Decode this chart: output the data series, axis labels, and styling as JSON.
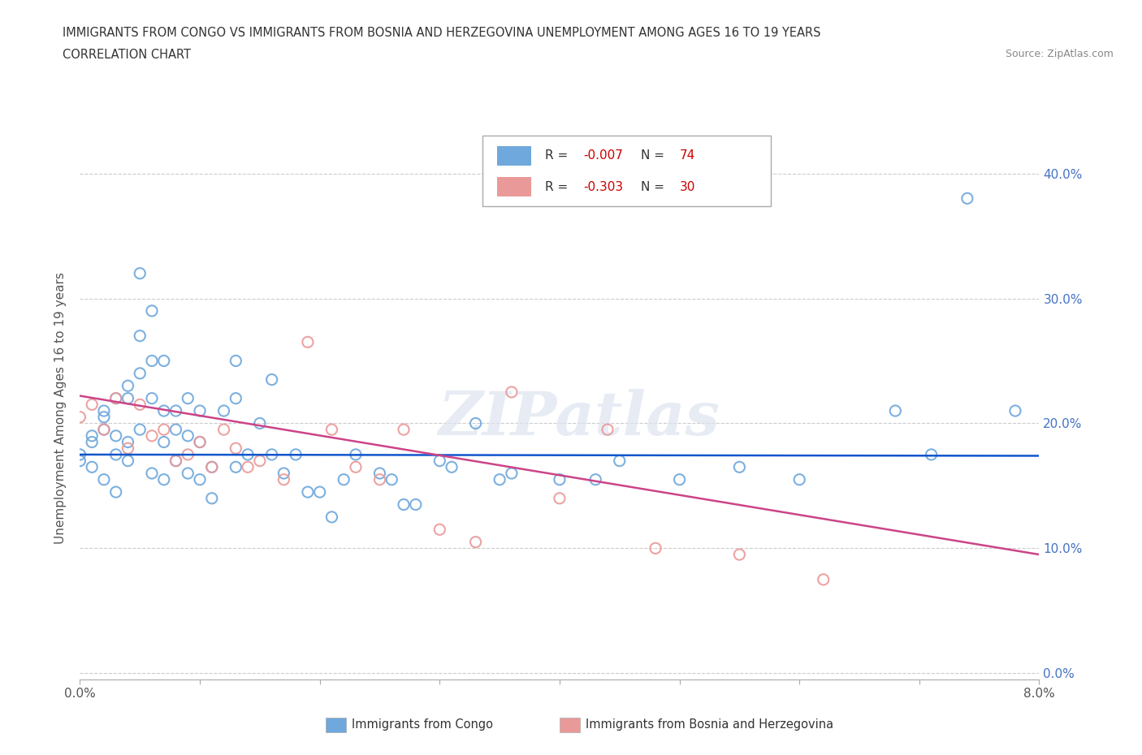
{
  "title_line1": "IMMIGRANTS FROM CONGO VS IMMIGRANTS FROM BOSNIA AND HERZEGOVINA UNEMPLOYMENT AMONG AGES 16 TO 19 YEARS",
  "title_line2": "CORRELATION CHART",
  "source": "Source: ZipAtlas.com",
  "ylabel": "Unemployment Among Ages 16 to 19 years",
  "xlim": [
    0.0,
    0.08
  ],
  "ylim": [
    -0.005,
    0.43
  ],
  "xticks": [
    0.0,
    0.01,
    0.02,
    0.03,
    0.04,
    0.05,
    0.06,
    0.07,
    0.08
  ],
  "xtick_labels": [
    "0.0%",
    "",
    "",
    "",
    "",
    "",
    "",
    "",
    "8.0%"
  ],
  "yticks": [
    0.0,
    0.1,
    0.2,
    0.3,
    0.4
  ],
  "ytick_labels": [
    "0.0%",
    "10.0%",
    "20.0%",
    "30.0%",
    "40.0%"
  ],
  "watermark": "ZIPatlas",
  "congo_color": "#6fa8dc",
  "bosnia_color": "#ea9999",
  "congo_edge_color": "#6fa8dc",
  "bosnia_edge_color": "#ea9999",
  "congo_line_color": "#1155cc",
  "bosnia_line_color": "#cc4488",
  "right_axis_color": "#4472c4",
  "legend_R_congo": "R = ",
  "legend_R_congo_val": "-0.007",
  "legend_N_congo": "N = ",
  "legend_N_congo_val": "74",
  "legend_R_bosnia": "R = ",
  "legend_R_bosnia_val": "-0.303",
  "legend_N_bosnia": "N = ",
  "legend_N_bosnia_val": "30",
  "legend_color_val": "#cc0000",
  "legend_color_label": "#333333",
  "congo_scatter_x": [
    0.0,
    0.0,
    0.001,
    0.001,
    0.001,
    0.002,
    0.002,
    0.002,
    0.002,
    0.003,
    0.003,
    0.003,
    0.003,
    0.004,
    0.004,
    0.004,
    0.004,
    0.005,
    0.005,
    0.005,
    0.005,
    0.006,
    0.006,
    0.006,
    0.006,
    0.007,
    0.007,
    0.007,
    0.007,
    0.008,
    0.008,
    0.008,
    0.009,
    0.009,
    0.009,
    0.01,
    0.01,
    0.01,
    0.011,
    0.011,
    0.012,
    0.013,
    0.013,
    0.013,
    0.014,
    0.015,
    0.016,
    0.016,
    0.017,
    0.018,
    0.019,
    0.02,
    0.021,
    0.022,
    0.023,
    0.025,
    0.026,
    0.027,
    0.028,
    0.03,
    0.031,
    0.033,
    0.035,
    0.036,
    0.04,
    0.043,
    0.045,
    0.05,
    0.055,
    0.06,
    0.068,
    0.071,
    0.074,
    0.078
  ],
  "congo_scatter_y": [
    0.175,
    0.17,
    0.19,
    0.185,
    0.165,
    0.21,
    0.205,
    0.195,
    0.155,
    0.22,
    0.19,
    0.175,
    0.145,
    0.23,
    0.22,
    0.185,
    0.17,
    0.32,
    0.27,
    0.24,
    0.195,
    0.29,
    0.25,
    0.22,
    0.16,
    0.25,
    0.21,
    0.185,
    0.155,
    0.21,
    0.195,
    0.17,
    0.22,
    0.19,
    0.16,
    0.21,
    0.185,
    0.155,
    0.165,
    0.14,
    0.21,
    0.25,
    0.22,
    0.165,
    0.175,
    0.2,
    0.235,
    0.175,
    0.16,
    0.175,
    0.145,
    0.145,
    0.125,
    0.155,
    0.175,
    0.16,
    0.155,
    0.135,
    0.135,
    0.17,
    0.165,
    0.2,
    0.155,
    0.16,
    0.155,
    0.155,
    0.17,
    0.155,
    0.165,
    0.155,
    0.21,
    0.175,
    0.38,
    0.21
  ],
  "bosnia_scatter_x": [
    0.0,
    0.001,
    0.002,
    0.003,
    0.004,
    0.005,
    0.006,
    0.007,
    0.008,
    0.009,
    0.01,
    0.011,
    0.012,
    0.013,
    0.014,
    0.015,
    0.017,
    0.019,
    0.021,
    0.023,
    0.025,
    0.027,
    0.03,
    0.033,
    0.036,
    0.04,
    0.044,
    0.048,
    0.055,
    0.062
  ],
  "bosnia_scatter_y": [
    0.205,
    0.215,
    0.195,
    0.22,
    0.18,
    0.215,
    0.19,
    0.195,
    0.17,
    0.175,
    0.185,
    0.165,
    0.195,
    0.18,
    0.165,
    0.17,
    0.155,
    0.265,
    0.195,
    0.165,
    0.155,
    0.195,
    0.115,
    0.105,
    0.225,
    0.14,
    0.195,
    0.1,
    0.095,
    0.075
  ],
  "congo_trend_x": [
    0.0,
    0.08
  ],
  "congo_trend_y": [
    0.175,
    0.174
  ],
  "bosnia_trend_x": [
    0.0,
    0.08
  ],
  "bosnia_trend_y": [
    0.222,
    0.095
  ],
  "grid_color": "#cccccc",
  "background_color": "#ffffff"
}
